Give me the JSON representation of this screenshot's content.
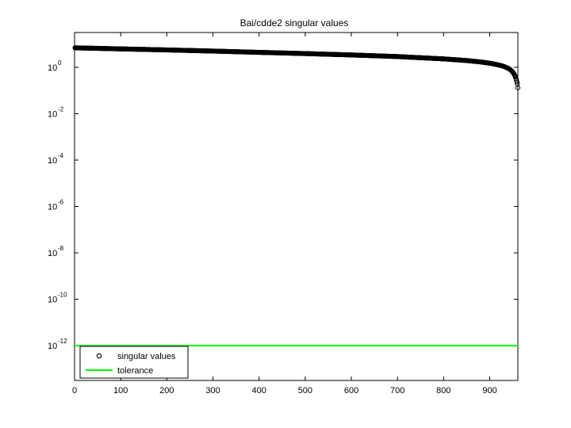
{
  "chart_data": {
    "type": "scatter",
    "title": "Bai/cdde2 singular values",
    "xlabel": "",
    "ylabel": "",
    "xlim": [
      0,
      961
    ],
    "ylim_exponents": [
      -13.5,
      1.5
    ],
    "y_scale": "log",
    "grid": false,
    "legend_position": "bottom-left",
    "x_ticks": [
      0,
      100,
      200,
      300,
      400,
      500,
      600,
      700,
      800,
      900
    ],
    "y_ticks": [
      {
        "exponent": 0,
        "base": "10",
        "exp_label": "0"
      },
      {
        "exponent": -2,
        "base": "10",
        "exp_label": "-2"
      },
      {
        "exponent": -4,
        "base": "10",
        "exp_label": "-4"
      },
      {
        "exponent": -6,
        "base": "10",
        "exp_label": "-6"
      },
      {
        "exponent": -8,
        "base": "10",
        "exp_label": "-8"
      },
      {
        "exponent": -10,
        "base": "10",
        "exp_label": "-10"
      },
      {
        "exponent": -12,
        "base": "10",
        "exp_label": "-12"
      }
    ],
    "series": [
      {
        "name": "singular values",
        "color": "#000000",
        "marker": "circle",
        "n": 961,
        "x": [
          1,
          100,
          200,
          300,
          400,
          500,
          600,
          700,
          800,
          850,
          880,
          900,
          920,
          930,
          940,
          945,
          950,
          953,
          956,
          958,
          960,
          961
        ],
        "y": [
          6.9,
          6.2,
          5.6,
          5.0,
          4.4,
          3.9,
          3.4,
          2.9,
          2.3,
          1.95,
          1.7,
          1.5,
          1.25,
          1.1,
          0.9,
          0.78,
          0.62,
          0.5,
          0.38,
          0.28,
          0.19,
          0.13
        ]
      },
      {
        "name": "tolerance",
        "color": "#00ff00",
        "marker": "line",
        "x": [
          0,
          961
        ],
        "y": [
          1e-12,
          1e-12
        ]
      }
    ]
  }
}
